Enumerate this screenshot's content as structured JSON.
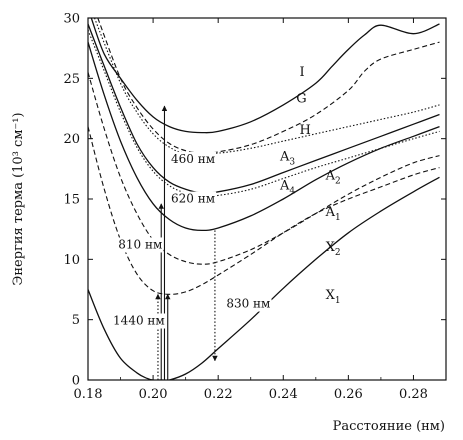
{
  "chart_data": {
    "type": "line",
    "title": "",
    "xlabel": "Расстояние (нм)",
    "ylabel": "Энергия терма (10³ см⁻¹)",
    "xlim": [
      0.18,
      0.29
    ],
    "ylim": [
      0,
      30
    ],
    "x_ticks": [
      "0.18",
      "0.20",
      "0.22",
      "0.24",
      "0.26",
      "0.28"
    ],
    "y_ticks": [
      "0",
      "5",
      "10",
      "15",
      "20",
      "25",
      "30"
    ],
    "grid": false,
    "series": [
      {
        "name": "I",
        "label": "I",
        "label_sub": "",
        "style": "solid",
        "x": [
          0.181,
          0.185,
          0.19,
          0.195,
          0.2,
          0.205,
          0.21,
          0.215,
          0.22,
          0.23,
          0.24,
          0.25,
          0.255,
          0.26,
          0.265,
          0.27,
          0.28,
          0.288
        ],
        "y": [
          30.0,
          27.0,
          25.0,
          23.2,
          21.8,
          21.0,
          20.6,
          20.5,
          20.6,
          21.4,
          22.8,
          24.6,
          26.0,
          27.4,
          28.6,
          29.4,
          28.7,
          29.5
        ]
      },
      {
        "name": "G",
        "label": "G",
        "label_sub": "",
        "style": "dashed",
        "x": [
          0.183,
          0.19,
          0.195,
          0.2,
          0.205,
          0.21,
          0.215,
          0.22,
          0.23,
          0.24,
          0.25,
          0.26,
          0.265,
          0.27,
          0.28,
          0.288
        ],
        "y": [
          30.0,
          25.0,
          22.6,
          20.8,
          19.6,
          19.0,
          18.8,
          18.9,
          19.5,
          20.6,
          22.0,
          24.0,
          25.6,
          26.6,
          27.4,
          28.0
        ]
      },
      {
        "name": "H",
        "label": "H",
        "label_sub": "",
        "style": "dotted",
        "x": [
          0.182,
          0.19,
          0.195,
          0.2,
          0.205,
          0.21,
          0.22,
          0.23,
          0.24,
          0.25,
          0.26,
          0.27,
          0.28,
          0.288
        ],
        "y": [
          30.0,
          24.6,
          22.2,
          20.4,
          19.3,
          18.8,
          18.8,
          19.2,
          19.8,
          20.4,
          21.0,
          21.6,
          22.2,
          22.8
        ]
      },
      {
        "name": "A3",
        "label": "A",
        "label_sub": "3",
        "style": "solid",
        "x": [
          0.18,
          0.185,
          0.19,
          0.195,
          0.2,
          0.205,
          0.21,
          0.215,
          0.22,
          0.23,
          0.24,
          0.25,
          0.26,
          0.27,
          0.28,
          0.288
        ],
        "y": [
          29.5,
          26.0,
          22.6,
          19.6,
          17.6,
          16.4,
          15.8,
          15.5,
          15.6,
          16.2,
          17.2,
          18.2,
          19.2,
          20.2,
          21.2,
          22.0
        ]
      },
      {
        "name": "A4",
        "label": "A",
        "label_sub": "4",
        "style": "dotted",
        "x": [
          0.18,
          0.185,
          0.19,
          0.195,
          0.2,
          0.205,
          0.21,
          0.215,
          0.22,
          0.23,
          0.24,
          0.25,
          0.26,
          0.27,
          0.28,
          0.288
        ],
        "y": [
          29.0,
          25.6,
          22.2,
          19.3,
          17.3,
          16.1,
          15.5,
          15.3,
          15.3,
          15.8,
          16.7,
          17.6,
          18.4,
          19.2,
          20.0,
          20.6
        ]
      },
      {
        "name": "A2",
        "label": "A",
        "label_sub": "2",
        "style": "solid",
        "x": [
          0.18,
          0.185,
          0.19,
          0.195,
          0.2,
          0.205,
          0.21,
          0.215,
          0.22,
          0.23,
          0.24,
          0.25,
          0.26,
          0.27,
          0.28,
          0.288
        ],
        "y": [
          28.0,
          23.6,
          19.8,
          16.8,
          14.6,
          13.3,
          12.6,
          12.4,
          12.6,
          13.6,
          15.0,
          16.6,
          18.0,
          19.2,
          20.2,
          21.0
        ]
      },
      {
        "name": "A1",
        "label": "A",
        "label_sub": "1",
        "style": "dashed",
        "x": [
          0.18,
          0.185,
          0.19,
          0.195,
          0.2,
          0.205,
          0.21,
          0.215,
          0.22,
          0.23,
          0.24,
          0.25,
          0.26,
          0.27,
          0.28,
          0.288
        ],
        "y": [
          25.5,
          20.8,
          16.8,
          13.8,
          11.6,
          10.4,
          9.8,
          9.6,
          9.8,
          10.8,
          12.2,
          13.8,
          15.4,
          16.8,
          18.0,
          18.6
        ]
      },
      {
        "name": "X2",
        "label": "X",
        "label_sub": "2",
        "style": "dashed",
        "x": [
          0.18,
          0.185,
          0.19,
          0.195,
          0.2,
          0.205,
          0.21,
          0.215,
          0.22,
          0.23,
          0.24,
          0.25,
          0.26,
          0.27,
          0.28,
          0.288
        ],
        "y": [
          21.0,
          15.8,
          11.6,
          8.8,
          7.4,
          7.1,
          7.3,
          7.9,
          8.7,
          10.4,
          12.2,
          13.8,
          15.0,
          16.0,
          17.0,
          17.6
        ]
      },
      {
        "name": "X1",
        "label": "X",
        "label_sub": "1",
        "style": "solid",
        "x": [
          0.18,
          0.185,
          0.19,
          0.195,
          0.198,
          0.2,
          0.203,
          0.205,
          0.21,
          0.215,
          0.22,
          0.23,
          0.24,
          0.25,
          0.26,
          0.27,
          0.28,
          0.288
        ],
        "y": [
          7.5,
          4.2,
          1.8,
          0.6,
          0.15,
          0.0,
          0.0,
          0.0,
          0.5,
          1.4,
          2.6,
          5.0,
          7.6,
          10.0,
          12.2,
          14.0,
          15.6,
          16.8
        ]
      }
    ],
    "series_labels_at": [
      {
        "name": "I",
        "x": 0.245,
        "y": 25.2
      },
      {
        "name": "G",
        "x": 0.244,
        "y": 23.0
      },
      {
        "name": "H",
        "x": 0.245,
        "y": 20.4
      },
      {
        "name": "A3",
        "x": 0.239,
        "y": 18.2
      },
      {
        "name": "A4",
        "x": 0.239,
        "y": 15.8
      },
      {
        "name": "A2",
        "x": 0.253,
        "y": 16.6
      },
      {
        "name": "A1",
        "x": 0.253,
        "y": 13.6
      },
      {
        "name": "X2",
        "x": 0.253,
        "y": 10.7
      },
      {
        "name": "X1",
        "x": 0.253,
        "y": 6.7
      }
    ],
    "annotations": [
      {
        "text": "460 нм",
        "x": 0.2035,
        "y_from": 0.0,
        "y_to": 22.7,
        "style": "solid",
        "label_x": 0.2055,
        "label_y": 18.0
      },
      {
        "text": "620 нм",
        "x": 0.2025,
        "y_from": 0.0,
        "y_to": 14.6,
        "style": "solid",
        "label_x": 0.2055,
        "label_y": 14.7
      },
      {
        "text": "810 нм",
        "x": 0.2015,
        "y_from": 0.0,
        "y_to": 7.1,
        "style": "dotted",
        "label_x": 0.1893,
        "label_y": 10.9
      },
      {
        "text": "1440 нм",
        "x": 0.2045,
        "y_from": 0.0,
        "y_to": 7.1,
        "style": "solid",
        "label_x": 0.1877,
        "label_y": 4.6
      },
      {
        "text": "830 нм",
        "x": 0.219,
        "y_from": 12.4,
        "y_to": 1.6,
        "style": "dotted",
        "label_x": 0.2225,
        "label_y": 6.0
      }
    ]
  }
}
